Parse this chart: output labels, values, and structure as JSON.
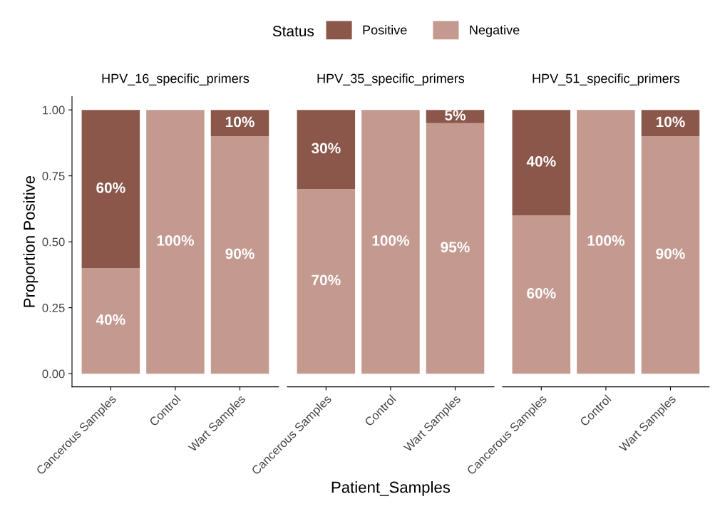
{
  "chart_data": [
    {
      "type": "bar",
      "title": "HPV_16_specific_primers",
      "ylabel": "Proportion Positive",
      "legend_title": "Status",
      "legend": "top",
      "stacked": true,
      "grid": false,
      "categories": [
        "Cancerous Samples",
        "Control",
        "Wart Samples"
      ],
      "ylim": [
        -0.05,
        1.05
      ],
      "yticks": [
        {
          "value": 0,
          "label": "0.00"
        },
        {
          "value": 0.25,
          "label": "0.25"
        },
        {
          "value": 0.5,
          "label": "0.50"
        },
        {
          "value": 0.75,
          "label": "0.75"
        },
        {
          "value": 1,
          "label": "1.00"
        }
      ],
      "series": [
        {
          "name": "Negative",
          "color": "#c49a90",
          "values": [
            0.4,
            1.0,
            0.9
          ],
          "value_labels": [
            "40%",
            "100%",
            "90%"
          ]
        },
        {
          "name": "Positive",
          "color": "#8b574a",
          "values": [
            0.6,
            0,
            0.1
          ],
          "value_labels": [
            "60%",
            null,
            "10%"
          ]
        }
      ]
    },
    {
      "type": "bar",
      "title": "HPV_35_specific_primers",
      "xlabel": "Patient_Samples",
      "stacked": true,
      "grid": false,
      "tick_labels": "x",
      "categories": [
        "Cancerous Samples",
        "Control",
        "Wart Samples"
      ],
      "series": [
        {
          "color": "#c49a90",
          "values": [
            0.7,
            1.0,
            0.95
          ],
          "value_labels": [
            "70%",
            "100%",
            "95%"
          ]
        },
        {
          "color": "#8b574a",
          "values": [
            0.3,
            0,
            0.05
          ],
          "value_labels": [
            "30%",
            null,
            "5%"
          ]
        }
      ]
    },
    {
      "type": "bar",
      "title": "HPV_51_specific_primers",
      "stacked": true,
      "grid": false,
      "tick_labels": "x",
      "categories": [
        "Cancerous Samples",
        "Control",
        "Wart Samples"
      ],
      "series": [
        {
          "color": "#c49a90",
          "values": [
            0.6,
            1.0,
            0.9
          ],
          "value_labels": [
            "60%",
            "100%",
            "90%"
          ]
        },
        {
          "color": "#8b574a",
          "values": [
            0.4,
            0,
            0.1
          ],
          "value_labels": [
            "40%",
            null,
            "10%"
          ]
        }
      ]
    }
  ]
}
